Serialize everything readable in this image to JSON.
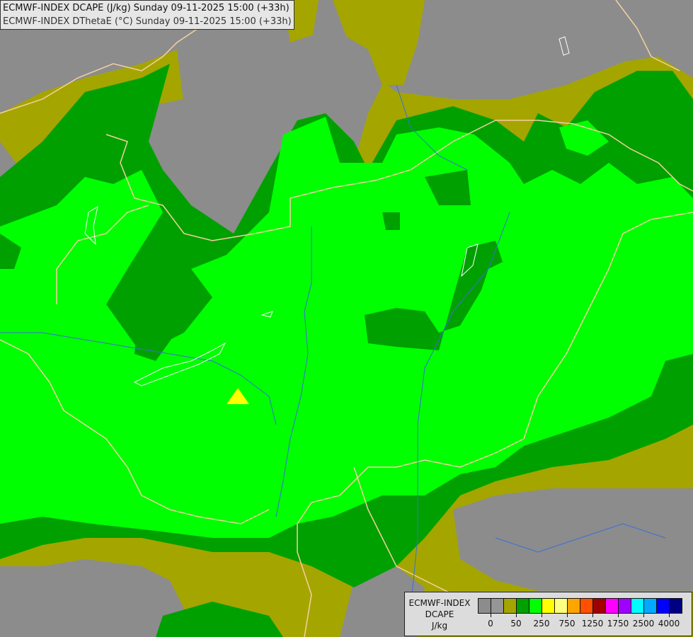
{
  "titles": [
    "ECMWF-INDEX DCAPE (J/kg) Sunday 09-11-2025 15:00 (+33h)",
    "ECMWF-INDEX DThetaE (°C) Sunday 09-11-2025 15:00 (+33h)"
  ],
  "map": {
    "colors": {
      "background": "#8c8c8c",
      "olive": "#a5a500",
      "dark_green": "#00a000",
      "green": "#00ff00",
      "yellow": "#ffff00",
      "borders": "#f5d0a0",
      "rivers": "#3a6fd8",
      "lakes": "#ffffff"
    }
  },
  "legend": {
    "label_lines": [
      "ECMWF-INDEX",
      "DCAPE",
      "J/kg"
    ],
    "colors": [
      "#8c8c8c",
      "#969696",
      "#a5a500",
      "#00a000",
      "#00ff00",
      "#ffff00",
      "#ffff80",
      "#ffa500",
      "#ff5000",
      "#a00000",
      "#ff00ff",
      "#a000ff",
      "#00ffff",
      "#00aaff",
      "#0000ff",
      "#000080"
    ],
    "ticks": [
      {
        "label": "0",
        "after_swatch": 1
      },
      {
        "label": "50",
        "after_swatch": 3
      },
      {
        "label": "250",
        "after_swatch": 5
      },
      {
        "label": "750",
        "after_swatch": 7
      },
      {
        "label": "1250",
        "after_swatch": 9
      },
      {
        "label": "1750",
        "after_swatch": 11
      },
      {
        "label": "2500",
        "after_swatch": 13
      },
      {
        "label": "4000",
        "after_swatch": 15
      }
    ]
  }
}
